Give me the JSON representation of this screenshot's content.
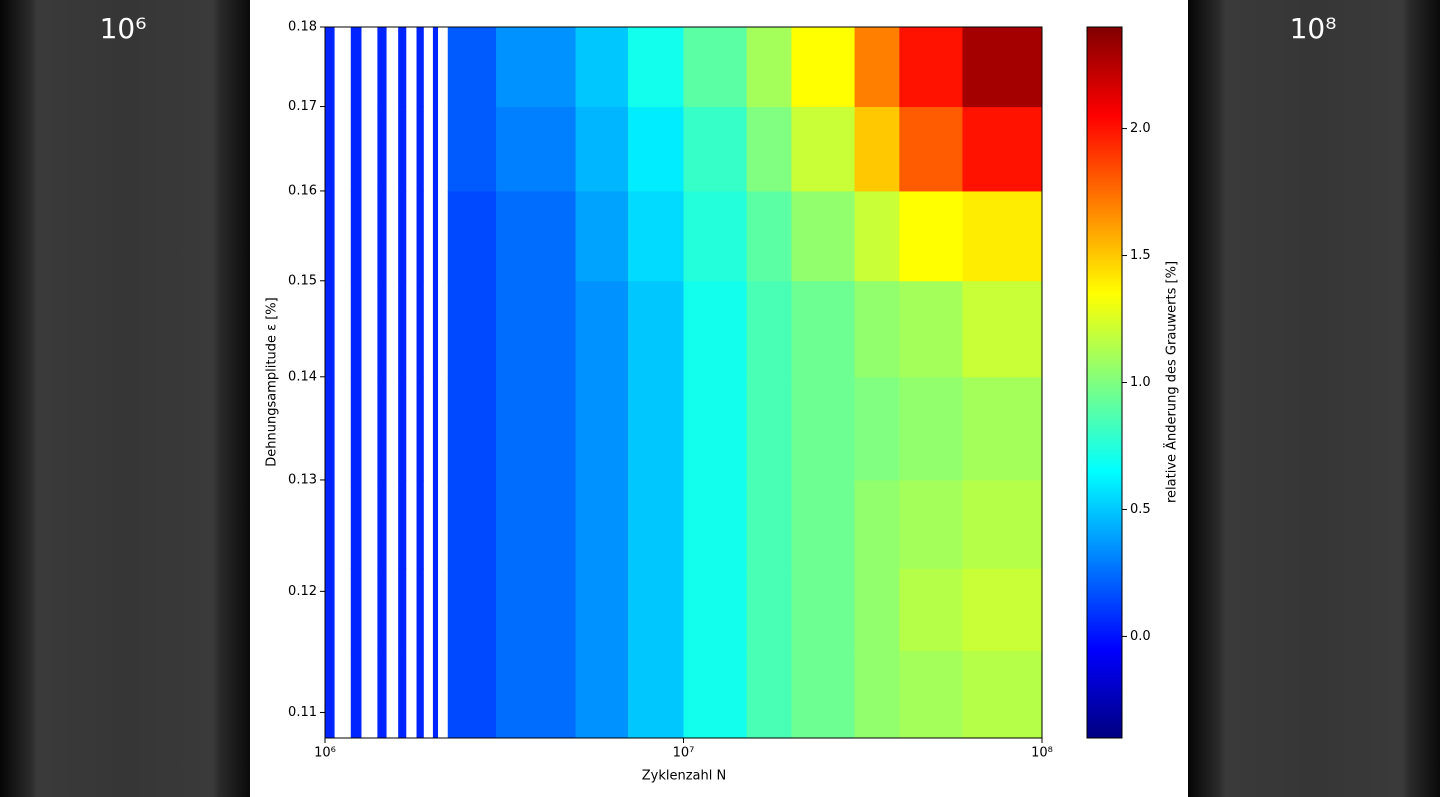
{
  "images": {
    "left_label": "10⁶",
    "right_label": "10⁸"
  },
  "chart_data": {
    "type": "heatmap",
    "x_label": "Zyklenzahl N",
    "y_label": "Dehnungsamplitude ε [%]",
    "colorbar_label": "relative Änderung des Grauwerts [%]",
    "xscale": "log",
    "yscale": "log",
    "xlim": [
      1000000,
      100000000
    ],
    "ylim": [
      0.108,
      0.18
    ],
    "xticks": [
      {
        "value": 1000000,
        "label": "10⁶"
      },
      {
        "value": 10000000,
        "label": "10⁷"
      },
      {
        "value": 100000000,
        "label": "10⁸"
      }
    ],
    "yticks": [
      0.11,
      0.12,
      0.13,
      0.14,
      0.15,
      0.16,
      0.17,
      0.18
    ],
    "clim": [
      -0.4,
      2.4
    ],
    "cticks": [
      {
        "value": 0,
        "label": "0.0"
      },
      0.5,
      {
        "value": 1,
        "label": "1.0"
      },
      1.5,
      {
        "value": 2,
        "label": "2.0"
      }
    ],
    "colormap": "jet",
    "x_edges": [
      1000000,
      1060000,
      1180000,
      1260000,
      1400000,
      1480000,
      1600000,
      1680000,
      1800000,
      1880000,
      2000000,
      2060000,
      2200000,
      3000000,
      5000000,
      7000000,
      10000000,
      15000000,
      20000000,
      30000000,
      40000000,
      60000000,
      100000000
    ],
    "y_edges": [
      0.108,
      0.115,
      0.122,
      0.13,
      0.14,
      0.15,
      0.16,
      0.17,
      0.18
    ],
    "z": [
      [
        0.05,
        null,
        0.05,
        null,
        0.05,
        null,
        0.05,
        null,
        0.05,
        null,
        0.05,
        null,
        0.15,
        0.25,
        0.35,
        0.5,
        0.7,
        0.85,
        0.95,
        1.05,
        1.1,
        1.15
      ],
      [
        0.05,
        null,
        0.05,
        null,
        0.05,
        null,
        0.05,
        null,
        0.05,
        null,
        0.05,
        null,
        0.15,
        0.25,
        0.35,
        0.5,
        0.7,
        0.85,
        0.95,
        1.05,
        1.15,
        1.2
      ],
      [
        0.05,
        null,
        0.05,
        null,
        0.05,
        null,
        0.05,
        null,
        0.05,
        null,
        0.05,
        null,
        0.15,
        0.25,
        0.35,
        0.5,
        0.7,
        0.85,
        0.95,
        1.05,
        1.1,
        1.15
      ],
      [
        0.05,
        null,
        0.05,
        null,
        0.05,
        null,
        0.05,
        null,
        0.05,
        null,
        0.05,
        null,
        0.15,
        0.25,
        0.35,
        0.5,
        0.7,
        0.85,
        0.95,
        1.0,
        1.05,
        1.1
      ],
      [
        0.05,
        null,
        0.05,
        null,
        0.05,
        null,
        0.05,
        null,
        0.05,
        null,
        0.05,
        null,
        0.15,
        0.25,
        0.35,
        0.5,
        0.7,
        0.85,
        0.95,
        1.05,
        1.1,
        1.2
      ],
      [
        0.05,
        null,
        0.05,
        null,
        0.05,
        null,
        0.05,
        null,
        0.05,
        null,
        0.05,
        null,
        0.15,
        0.25,
        0.4,
        0.55,
        0.75,
        0.9,
        1.05,
        1.2,
        1.35,
        1.4
      ],
      [
        0.05,
        null,
        0.05,
        null,
        0.05,
        null,
        0.05,
        null,
        0.05,
        null,
        0.05,
        null,
        0.2,
        0.3,
        0.45,
        0.6,
        0.8,
        1.0,
        1.2,
        1.5,
        1.8,
        2.0
      ],
      [
        0.05,
        null,
        0.05,
        null,
        0.05,
        null,
        0.05,
        null,
        0.05,
        null,
        0.05,
        null,
        0.2,
        0.35,
        0.5,
        0.7,
        0.9,
        1.1,
        1.35,
        1.7,
        2.0,
        2.3
      ]
    ]
  }
}
